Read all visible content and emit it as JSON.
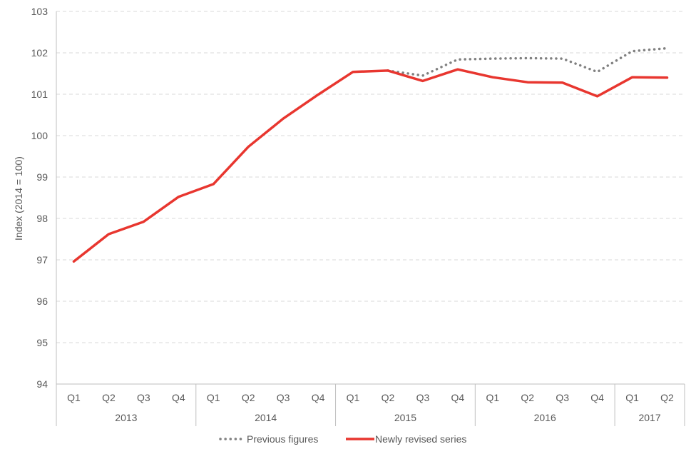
{
  "chart_data": {
    "type": "line",
    "ylabel": "Index (2014 = 100)",
    "ylim": [
      94,
      103
    ],
    "yticks": [
      94,
      95,
      96,
      97,
      98,
      99,
      100,
      101,
      102,
      103
    ],
    "grid": "horizontal-dashed",
    "legend_position": "bottom-center",
    "categories": [
      {
        "quarter": "Q1",
        "year": "2013"
      },
      {
        "quarter": "Q2",
        "year": "2013"
      },
      {
        "quarter": "Q3",
        "year": "2013"
      },
      {
        "quarter": "Q4",
        "year": "2013"
      },
      {
        "quarter": "Q1",
        "year": "2014"
      },
      {
        "quarter": "Q2",
        "year": "2014"
      },
      {
        "quarter": "Q3",
        "year": "2014"
      },
      {
        "quarter": "Q4",
        "year": "2014"
      },
      {
        "quarter": "Q1",
        "year": "2015"
      },
      {
        "quarter": "Q2",
        "year": "2015"
      },
      {
        "quarter": "Q3",
        "year": "2015"
      },
      {
        "quarter": "Q4",
        "year": "2015"
      },
      {
        "quarter": "Q1",
        "year": "2016"
      },
      {
        "quarter": "Q2",
        "year": "2016"
      },
      {
        "quarter": "Q3",
        "year": "2016"
      },
      {
        "quarter": "Q4",
        "year": "2016"
      },
      {
        "quarter": "Q1",
        "year": "2017"
      },
      {
        "quarter": "Q2",
        "year": "2017"
      }
    ],
    "years": [
      "2013",
      "2014",
      "2015",
      "2016",
      "2017"
    ],
    "series": [
      {
        "name": "Previous figures",
        "style": "dotted",
        "color": "#808080",
        "values": [
          null,
          null,
          null,
          null,
          null,
          null,
          null,
          null,
          null,
          101.57,
          101.45,
          101.84,
          101.86,
          101.87,
          101.86,
          101.54,
          102.04,
          102.11
        ]
      },
      {
        "name": "Newly revised series",
        "style": "solid",
        "color": "#e8362f",
        "values": [
          96.96,
          97.62,
          97.92,
          98.52,
          98.83,
          99.73,
          100.41,
          100.99,
          101.54,
          101.57,
          101.32,
          101.6,
          101.41,
          101.29,
          101.28,
          100.95,
          101.41,
          101.4
        ]
      }
    ]
  }
}
